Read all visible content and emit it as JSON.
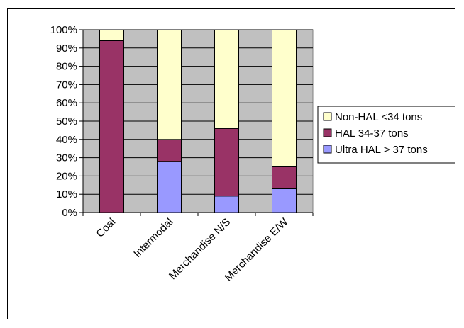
{
  "chart_data": {
    "type": "bar",
    "stacked": true,
    "categories": [
      "Coal",
      "Intermodal",
      "Merchandise N/S",
      "Merchandise E/W"
    ],
    "series": [
      {
        "name": "Ultra HAL > 37 tons",
        "color": "#9999FF",
        "values": [
          0,
          28,
          9,
          13
        ]
      },
      {
        "name": "HAL 34-37 tons",
        "color": "#993366",
        "values": [
          94,
          12,
          37,
          12
        ]
      },
      {
        "name": "Non-HAL <34 tons",
        "color": "#FFFFCC",
        "values": [
          6,
          60,
          54,
          75
        ]
      }
    ],
    "ylim": [
      0,
      100
    ],
    "yticks": [
      "0%",
      "10%",
      "20%",
      "30%",
      "40%",
      "50%",
      "60%",
      "70%",
      "80%",
      "90%",
      "100%"
    ],
    "plot_background": "#C0C0C0",
    "grid": true,
    "legend_position": "right",
    "legend_order": [
      "Non-HAL <34 tons",
      "HAL 34-37 tons",
      "Ultra HAL > 37 tons"
    ],
    "title": "",
    "xlabel": "",
    "ylabel": ""
  }
}
